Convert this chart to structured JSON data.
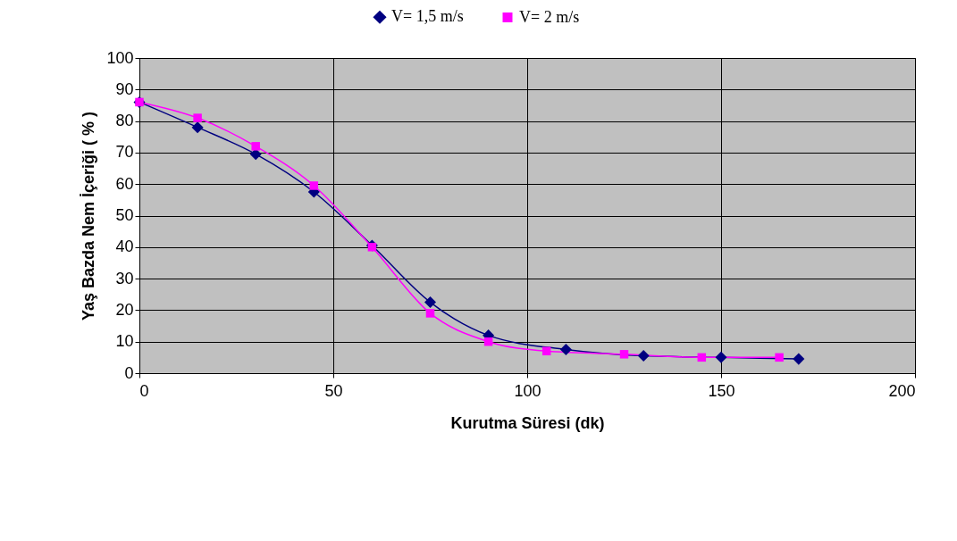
{
  "chart_data": {
    "type": "line",
    "xlabel": "Kurutma Süresi (dk)",
    "ylabel": "Yaş Bazda Nem İçeriği ( % )",
    "xlim": [
      0,
      200
    ],
    "xticks": [
      0,
      50,
      100,
      150,
      200
    ],
    "ylim": [
      0,
      100
    ],
    "yticks": [
      0,
      10,
      20,
      30,
      40,
      50,
      60,
      70,
      80,
      90,
      100
    ],
    "grid": true,
    "legend": "top",
    "series": [
      {
        "name": "V= 1,5 m/s",
        "color": "#000080",
        "marker": "diamond",
        "x": [
          0,
          15,
          30,
          45,
          60,
          75,
          90,
          110,
          130,
          150,
          170
        ],
        "values": [
          86,
          78,
          69.5,
          57.5,
          40.5,
          22.5,
          12,
          7.5,
          5.5,
          5,
          4.5
        ]
      },
      {
        "name": "V= 2 m/s",
        "color": "#ff00ff",
        "marker": "square",
        "x": [
          0,
          15,
          30,
          45,
          60,
          75,
          90,
          105,
          125,
          145,
          165
        ],
        "values": [
          86,
          81,
          72,
          59.5,
          40,
          19,
          10,
          7,
          6,
          5,
          5
        ]
      }
    ]
  }
}
